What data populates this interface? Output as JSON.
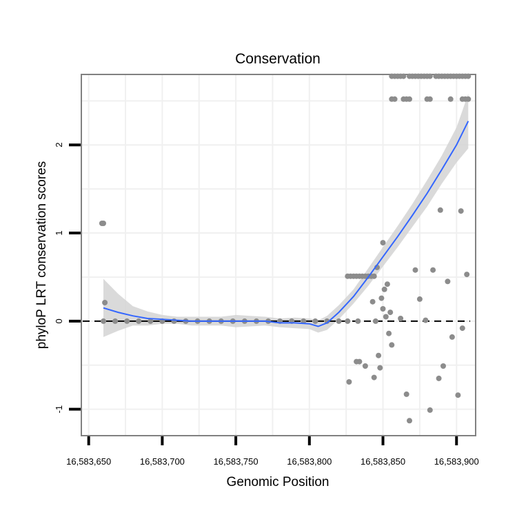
{
  "chart_data": {
    "type": "scatter",
    "title": "Conservation",
    "xlabel": "Genomic Position",
    "ylabel": "phyloP LRT conservation scores",
    "xlim": [
      16583645,
      16583913
    ],
    "ylim": [
      -1.3,
      2.8
    ],
    "xticks": [
      16583650,
      16583700,
      16583750,
      16583800,
      16583850,
      16583900
    ],
    "xtick_labels": [
      "16,583,650",
      "16,583,700",
      "16,583,750",
      "16,583,800",
      "16,583,850",
      "16,583,900"
    ],
    "yticks": [
      -1,
      0,
      1,
      2
    ],
    "ytick_labels": [
      "-1",
      "0",
      "1",
      "2"
    ],
    "reference_line": {
      "y": 0,
      "style": "dashed"
    },
    "points": [
      [
        16583659,
        1.11
      ],
      [
        16583660,
        1.11
      ],
      [
        16583661,
        0.21
      ],
      [
        16583660,
        0
      ],
      [
        16583668,
        0
      ],
      [
        16583676,
        0
      ],
      [
        16583684,
        0
      ],
      [
        16583692,
        0
      ],
      [
        16583700,
        0
      ],
      [
        16583708,
        0
      ],
      [
        16583716,
        0
      ],
      [
        16583724,
        0
      ],
      [
        16583732,
        0
      ],
      [
        16583740,
        0
      ],
      [
        16583748,
        0
      ],
      [
        16583756,
        0
      ],
      [
        16583764,
        0
      ],
      [
        16583772,
        0
      ],
      [
        16583780,
        0
      ],
      [
        16583788,
        0
      ],
      [
        16583796,
        0
      ],
      [
        16583804,
        0
      ],
      [
        16583812,
        0
      ],
      [
        16583820,
        0
      ],
      [
        16583826,
        0
      ],
      [
        16583826,
        0.51
      ],
      [
        16583828,
        0.51
      ],
      [
        16583830,
        0.51
      ],
      [
        16583832,
        0.51
      ],
      [
        16583834,
        0.51
      ],
      [
        16583836,
        0.51
      ],
      [
        16583838,
        0.51
      ],
      [
        16583840,
        0.51
      ],
      [
        16583842,
        0.51
      ],
      [
        16583844,
        0.51
      ],
      [
        16583827,
        -0.69
      ],
      [
        16583832,
        -0.46
      ],
      [
        16583834,
        -0.46
      ],
      [
        16583833,
        0.0
      ],
      [
        16583838,
        -0.51
      ],
      [
        16583843,
        0.22
      ],
      [
        16583844,
        -0.64
      ],
      [
        16583845,
        0.0
      ],
      [
        16583846,
        0.61
      ],
      [
        16583847,
        -0.39
      ],
      [
        16583848,
        -0.53
      ],
      [
        16583849,
        0.26
      ],
      [
        16583850,
        0.14
      ],
      [
        16583850,
        0.89
      ],
      [
        16583851,
        0.36
      ],
      [
        16583852,
        0.05
      ],
      [
        16583853,
        0.42
      ],
      [
        16583854,
        -0.14
      ],
      [
        16583855,
        0.1
      ],
      [
        16583856,
        -0.27
      ],
      [
        16583856,
        2.52
      ],
      [
        16583858,
        2.52
      ],
      [
        16583864,
        2.52
      ],
      [
        16583866,
        2.52
      ],
      [
        16583868,
        2.52
      ],
      [
        16583880,
        2.52
      ],
      [
        16583882,
        2.52
      ],
      [
        16583896,
        2.52
      ],
      [
        16583904,
        2.52
      ],
      [
        16583906,
        2.52
      ],
      [
        16583908,
        2.52
      ],
      [
        16583856,
        2.78
      ],
      [
        16583858,
        2.78
      ],
      [
        16583860,
        2.78
      ],
      [
        16583862,
        2.78
      ],
      [
        16583864,
        2.78
      ],
      [
        16583868,
        2.78
      ],
      [
        16583870,
        2.78
      ],
      [
        16583872,
        2.78
      ],
      [
        16583874,
        2.78
      ],
      [
        16583876,
        2.78
      ],
      [
        16583878,
        2.78
      ],
      [
        16583880,
        2.78
      ],
      [
        16583882,
        2.78
      ],
      [
        16583886,
        2.78
      ],
      [
        16583888,
        2.78
      ],
      [
        16583890,
        2.78
      ],
      [
        16583892,
        2.78
      ],
      [
        16583894,
        2.78
      ],
      [
        16583896,
        2.78
      ],
      [
        16583898,
        2.78
      ],
      [
        16583900,
        2.78
      ],
      [
        16583902,
        2.78
      ],
      [
        16583904,
        2.78
      ],
      [
        16583906,
        2.78
      ],
      [
        16583908,
        2.78
      ],
      [
        16583862,
        0.03
      ],
      [
        16583866,
        -0.83
      ],
      [
        16583868,
        -1.13
      ],
      [
        16583872,
        0.58
      ],
      [
        16583875,
        0.25
      ],
      [
        16583879,
        0.01
      ],
      [
        16583882,
        -1.01
      ],
      [
        16583884,
        0.58
      ],
      [
        16583888,
        -0.65
      ],
      [
        16583889,
        1.26
      ],
      [
        16583891,
        -0.51
      ],
      [
        16583894,
        0.45
      ],
      [
        16583897,
        -0.18
      ],
      [
        16583901,
        -0.84
      ],
      [
        16583903,
        1.25
      ],
      [
        16583904,
        -0.08
      ],
      [
        16583907,
        0.53
      ]
    ],
    "smooth_fit": {
      "color": "#3366ff",
      "x": [
        16583660,
        16583670,
        16583680,
        16583690,
        16583700,
        16583710,
        16583720,
        16583730,
        16583740,
        16583750,
        16583760,
        16583770,
        16583780,
        16583790,
        16583800,
        16583806,
        16583812,
        16583820,
        16583830,
        16583840,
        16583850,
        16583860,
        16583870,
        16583880,
        16583890,
        16583900,
        16583908
      ],
      "y": [
        0.15,
        0.1,
        0.06,
        0.03,
        0.02,
        0.01,
        0.0,
        0.0,
        0.0,
        0.0,
        0.0,
        0.0,
        -0.02,
        -0.02,
        -0.03,
        -0.06,
        -0.02,
        0.1,
        0.28,
        0.5,
        0.73,
        0.96,
        1.2,
        1.45,
        1.72,
        2.0,
        2.27
      ],
      "ci_upper": [
        0.48,
        0.31,
        0.17,
        0.11,
        0.07,
        0.05,
        0.05,
        0.05,
        0.05,
        0.07,
        0.06,
        0.05,
        0.03,
        0.04,
        0.03,
        0.01,
        0.06,
        0.18,
        0.36,
        0.6,
        0.84,
        1.08,
        1.33,
        1.6,
        1.88,
        2.2,
        2.58
      ],
      "ci_lower": [
        -0.18,
        -0.11,
        -0.05,
        -0.05,
        -0.03,
        -0.03,
        -0.05,
        -0.05,
        -0.05,
        -0.07,
        -0.06,
        -0.05,
        -0.07,
        -0.08,
        -0.09,
        -0.13,
        -0.1,
        0.02,
        0.2,
        0.4,
        0.62,
        0.84,
        1.07,
        1.3,
        1.56,
        1.8,
        1.96
      ]
    }
  }
}
